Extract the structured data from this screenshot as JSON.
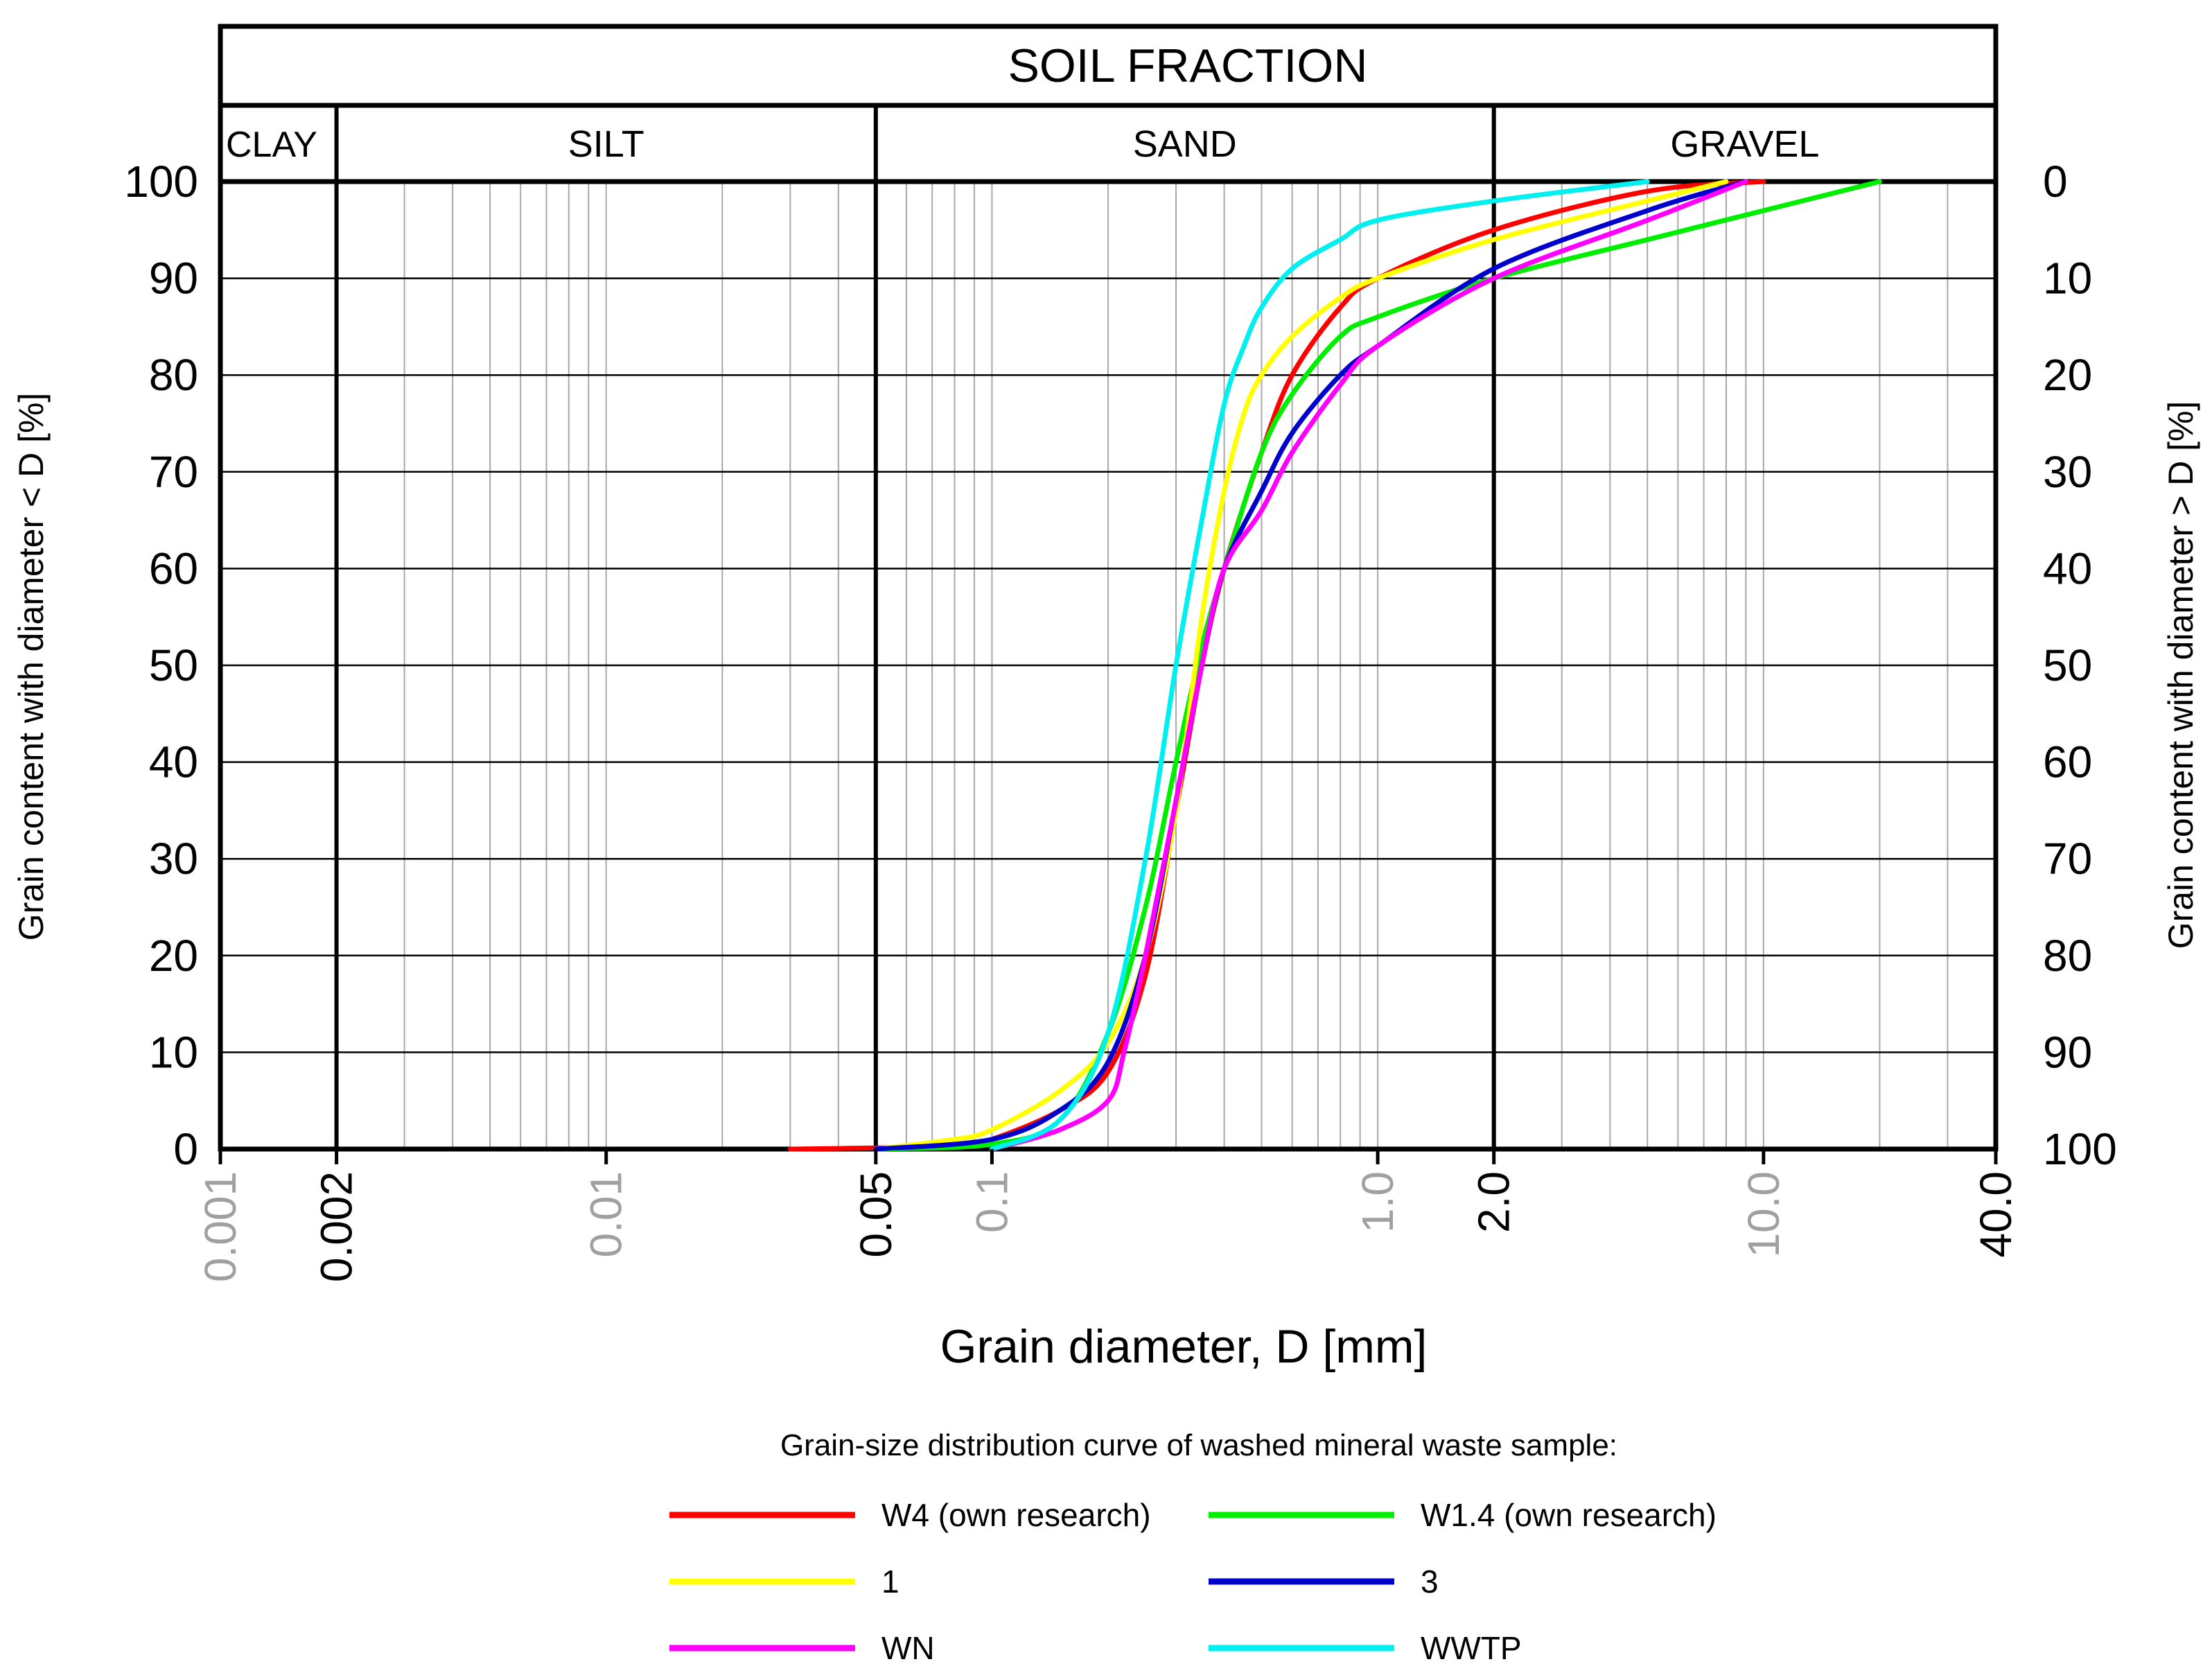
{
  "chart_data": {
    "type": "line",
    "title": "SOIL FRACTION",
    "x_scale": "log",
    "xlim": [
      0.001,
      40.0
    ],
    "ylim": [
      0,
      100
    ],
    "xlabel": "Grain diameter, D [mm]",
    "ylabel_left": "Grain content with diameter < D [%]",
    "ylabel_right": "Grain content with diameter > D [%]",
    "fractions": [
      {
        "name": "CLAY",
        "from": 0.001,
        "to": 0.002
      },
      {
        "name": "SILT",
        "from": 0.002,
        "to": 0.05
      },
      {
        "name": "SAND",
        "from": 0.05,
        "to": 2.0
      },
      {
        "name": "GRAVEL",
        "from": 2.0,
        "to": 40.0
      }
    ],
    "x_ticks": [
      {
        "value": 0.001,
        "label": "0.001",
        "kind": "minor"
      },
      {
        "value": 0.002,
        "label": "0.002",
        "kind": "major"
      },
      {
        "value": 0.01,
        "label": "0.01",
        "kind": "minor"
      },
      {
        "value": 0.05,
        "label": "0.05",
        "kind": "major"
      },
      {
        "value": 0.1,
        "label": "0.1",
        "kind": "minor"
      },
      {
        "value": 1.0,
        "label": "1.0",
        "kind": "minor"
      },
      {
        "value": 2.0,
        "label": "2.0",
        "kind": "major"
      },
      {
        "value": 10.0,
        "label": "10.0",
        "kind": "minor"
      },
      {
        "value": 40.0,
        "label": "40.0",
        "kind": "major"
      }
    ],
    "y_ticks_left": [
      "0",
      "10",
      "20",
      "30",
      "40",
      "50",
      "60",
      "70",
      "80",
      "90",
      "100"
    ],
    "y_ticks_right": [
      "100",
      "90",
      "80",
      "70",
      "60",
      "50",
      "40",
      "30",
      "20",
      "10",
      "0"
    ],
    "legend_title": "Grain-size distribution curve of washed mineral waste sample:",
    "legend_position": "bottom",
    "series": [
      {
        "name": "W4 (own research)",
        "color": "#ff0000",
        "points": [
          [
            0.03,
            0
          ],
          [
            0.08,
            0.3
          ],
          [
            0.1,
            1
          ],
          [
            0.15,
            4
          ],
          [
            0.2,
            8
          ],
          [
            0.25,
            18
          ],
          [
            0.3,
            35
          ],
          [
            0.35,
            50
          ],
          [
            0.4,
            60
          ],
          [
            0.5,
            72
          ],
          [
            0.6,
            80
          ],
          [
            0.8,
            87
          ],
          [
            1.0,
            90
          ],
          [
            2.0,
            95
          ],
          [
            5.0,
            99
          ],
          [
            10.0,
            100
          ]
        ]
      },
      {
        "name": "W1.4 (own research)",
        "color": "#00ee00",
        "points": [
          [
            0.05,
            0
          ],
          [
            0.1,
            0.5
          ],
          [
            0.15,
            3
          ],
          [
            0.2,
            12
          ],
          [
            0.25,
            25
          ],
          [
            0.3,
            40
          ],
          [
            0.35,
            52
          ],
          [
            0.4,
            60
          ],
          [
            0.5,
            72
          ],
          [
            0.6,
            78
          ],
          [
            0.8,
            84
          ],
          [
            1.0,
            86
          ],
          [
            2.0,
            90
          ],
          [
            5.0,
            94
          ],
          [
            10.0,
            97
          ],
          [
            20.0,
            100
          ]
        ]
      },
      {
        "name": "1",
        "color": "#ffff00",
        "points": [
          [
            0.05,
            0
          ],
          [
            0.08,
            1
          ],
          [
            0.1,
            2
          ],
          [
            0.15,
            6
          ],
          [
            0.2,
            11
          ],
          [
            0.25,
            20
          ],
          [
            0.3,
            35
          ],
          [
            0.35,
            55
          ],
          [
            0.4,
            68
          ],
          [
            0.45,
            76
          ],
          [
            0.5,
            80
          ],
          [
            0.6,
            84
          ],
          [
            0.8,
            88
          ],
          [
            1.0,
            90
          ],
          [
            2.0,
            94
          ],
          [
            5.0,
            98
          ],
          [
            8.0,
            100
          ]
        ]
      },
      {
        "name": "3",
        "color": "#0000cc",
        "points": [
          [
            0.05,
            0
          ],
          [
            0.1,
            1
          ],
          [
            0.15,
            4
          ],
          [
            0.2,
            9
          ],
          [
            0.25,
            20
          ],
          [
            0.3,
            36
          ],
          [
            0.35,
            50
          ],
          [
            0.4,
            60
          ],
          [
            0.5,
            68
          ],
          [
            0.6,
            74
          ],
          [
            0.8,
            80
          ],
          [
            1.0,
            83
          ],
          [
            2.0,
            91
          ],
          [
            5.0,
            97
          ],
          [
            9.0,
            100
          ]
        ]
      },
      {
        "name": "WN",
        "color": "#ff00ff",
        "points": [
          [
            0.1,
            0
          ],
          [
            0.15,
            2
          ],
          [
            0.2,
            5
          ],
          [
            0.22,
            10
          ],
          [
            0.25,
            20
          ],
          [
            0.3,
            36
          ],
          [
            0.35,
            50
          ],
          [
            0.4,
            60
          ],
          [
            0.5,
            66
          ],
          [
            0.6,
            72
          ],
          [
            0.8,
            79
          ],
          [
            1.0,
            83
          ],
          [
            2.0,
            90
          ],
          [
            5.0,
            96
          ],
          [
            9.0,
            100
          ]
        ]
      },
      {
        "name": "WWTP",
        "color": "#00f0f0",
        "points": [
          [
            0.1,
            0
          ],
          [
            0.15,
            3
          ],
          [
            0.2,
            12
          ],
          [
            0.25,
            30
          ],
          [
            0.3,
            50
          ],
          [
            0.35,
            65
          ],
          [
            0.4,
            77
          ],
          [
            0.45,
            83
          ],
          [
            0.5,
            87
          ],
          [
            0.6,
            91
          ],
          [
            0.8,
            94
          ],
          [
            1.0,
            96
          ],
          [
            2.0,
            98
          ],
          [
            5.0,
            100
          ]
        ]
      }
    ]
  }
}
